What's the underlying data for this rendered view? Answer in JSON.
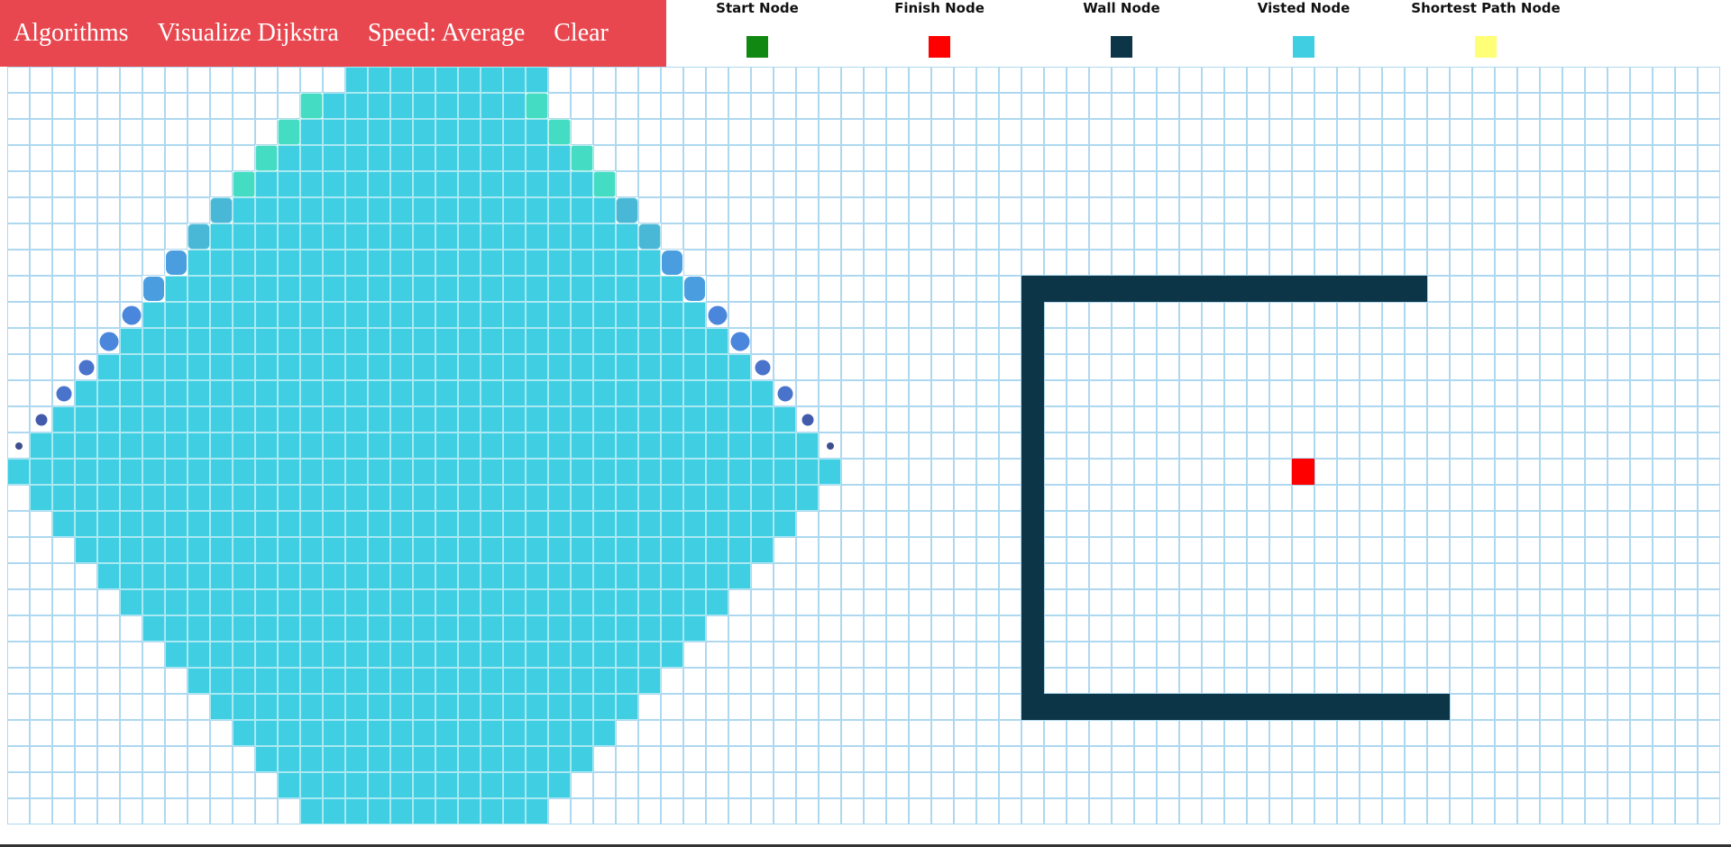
{
  "navbar": {
    "items": [
      {
        "label": "Algorithms"
      },
      {
        "label": "Visualize Dijkstra"
      },
      {
        "label": "Speed: Average"
      },
      {
        "label": "Clear"
      }
    ],
    "background": "#e8474f"
  },
  "legend": [
    {
      "label": "Start Node",
      "color": "#118811"
    },
    {
      "label": "Finish Node",
      "color": "#ff0000"
    },
    {
      "label": "Wall Node",
      "color": "#0c3547"
    },
    {
      "label": "Visted Node",
      "color": "#40cee3"
    },
    {
      "label": "Shortest Path Node",
      "color": "#ffff77"
    }
  ],
  "grid": {
    "rows": 29,
    "cols": 76,
    "colors": {
      "empty": "#ffffff",
      "visited": "#40cee3",
      "wall": "#0c3547",
      "finish": "#ff0000",
      "cell_border": "#aed8f0"
    },
    "start_node": {
      "row": 15,
      "col": 18
    },
    "finish_node": {
      "row": 15,
      "col": 57
    },
    "visited_radius": 18,
    "visited_top_rows": [
      0,
      1,
      2,
      3,
      4
    ],
    "frontier_stages": [
      {
        "row": 1,
        "stage": 1
      },
      {
        "row": 2,
        "stage": 1
      },
      {
        "row": 3,
        "stage": 1
      },
      {
        "row": 4,
        "stage": 1
      },
      {
        "row": 5,
        "stage": 2
      },
      {
        "row": 6,
        "stage": 2
      },
      {
        "row": 7,
        "stage": 3
      },
      {
        "row": 8,
        "stage": 3
      },
      {
        "row": 9,
        "stage": 4
      },
      {
        "row": 10,
        "stage": 4
      },
      {
        "row": 11,
        "stage": 5
      },
      {
        "row": 12,
        "stage": 5
      },
      {
        "row": 13,
        "stage": 6
      },
      {
        "row": 14,
        "stage": 7
      }
    ],
    "walls": [
      {
        "row": 8,
        "col_start": 45,
        "col_end": 62
      },
      {
        "row": 24,
        "col_start": 45,
        "col_end": 63
      },
      {
        "col": 45,
        "row_start": 9,
        "row_end": 23
      }
    ]
  }
}
